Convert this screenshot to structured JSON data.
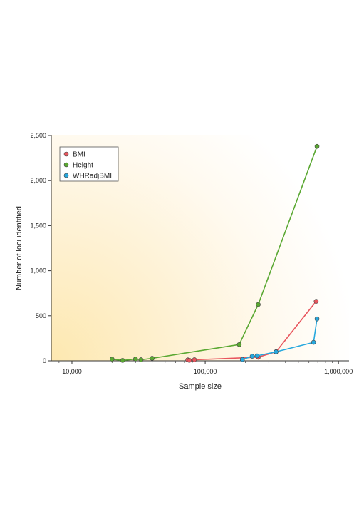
{
  "chart_data": {
    "type": "line",
    "title": "",
    "xlabel": "Sample size",
    "ylabel": "Number of loci identified",
    "xscale": "log",
    "xlim": [
      7000,
      1200000
    ],
    "ylim": [
      0,
      2500
    ],
    "x_ticks": [
      10000,
      100000,
      1000000
    ],
    "x_tick_labels": [
      "10,000",
      "100,000",
      "1,000,000"
    ],
    "y_ticks": [
      0,
      500,
      1000,
      1500,
      2000,
      2500
    ],
    "y_tick_labels": [
      "0",
      "500",
      "1,000",
      "1,500",
      "2,000",
      "2,500"
    ],
    "grid": false,
    "legend_position": "top-left",
    "background": "radial gradient, warm yellow at bottom-left fading to white",
    "series": [
      {
        "name": "BMI",
        "color": "#e8555d",
        "x": [
          74000,
          76000,
          83000,
          250000,
          340000,
          680000
        ],
        "y": [
          10,
          6,
          12,
          40,
          100,
          660
        ]
      },
      {
        "name": "Height",
        "color": "#5aa832",
        "x": [
          20000,
          24000,
          30000,
          33000,
          40000,
          180000,
          250000,
          690000
        ],
        "y": [
          18,
          5,
          20,
          12,
          28,
          180,
          625,
          2380
        ]
      },
      {
        "name": "WHRadjBMI",
        "color": "#27a8de",
        "x": [
          190000,
          225000,
          245000,
          340000,
          650000,
          690000
        ],
        "y": [
          15,
          50,
          55,
          100,
          205,
          465
        ]
      }
    ]
  }
}
